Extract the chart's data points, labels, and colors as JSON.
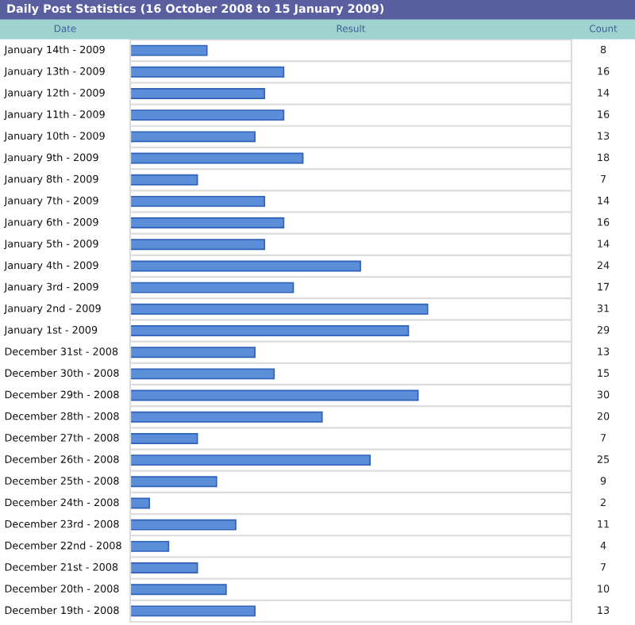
{
  "chart_data": {
    "type": "bar",
    "orientation": "horizontal",
    "title": "Daily Post Statistics (16 October 2008 to 15 January 2009)",
    "ylabel": "Date",
    "xlabel": "Result",
    "annotations": [
      "Count"
    ],
    "categories": [
      "January 14th - 2009",
      "January 13th - 2009",
      "January 12th - 2009",
      "January 11th - 2009",
      "January 10th - 2009",
      "January 9th - 2009",
      "January 8th - 2009",
      "January 7th - 2009",
      "January 6th - 2009",
      "January 5th - 2009",
      "January 4th - 2009",
      "January 3rd - 2009",
      "January 2nd - 2009",
      "January 1st - 2009",
      "December 31st - 2008",
      "December 30th - 2008",
      "December 29th - 2008",
      "December 28th - 2008",
      "December 27th - 2008",
      "December 26th - 2008",
      "December 25th - 2008",
      "December 24th - 2008",
      "December 23rd - 2008",
      "December 22nd - 2008",
      "December 21st - 2008",
      "December 20th - 2008",
      "December 19th - 2008"
    ],
    "values": [
      8,
      16,
      14,
      16,
      13,
      18,
      7,
      14,
      16,
      14,
      24,
      17,
      31,
      29,
      13,
      15,
      30,
      20,
      7,
      25,
      9,
      2,
      11,
      4,
      7,
      10,
      13
    ],
    "color": "#5b8ed8",
    "xlim": [
      0,
      46
    ],
    "data_labels": true,
    "grid": "y"
  }
}
